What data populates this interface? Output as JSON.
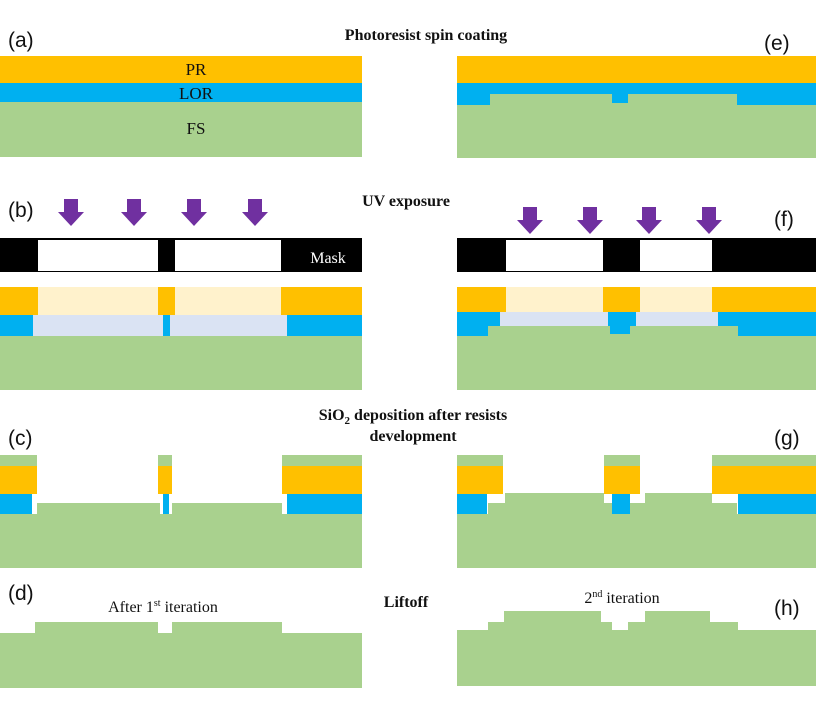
{
  "colors": {
    "photoresist": "#FFC000",
    "lor": "#00B0F0",
    "substrate": "#A9D18E",
    "exposed_pr": "#FFF2CC",
    "exposed_lor": "#DAE3F3",
    "mask": "#000000",
    "arrow": "#7030A0"
  },
  "panel_labels": {
    "a": "(a)",
    "b": "(b)",
    "c": "(c)",
    "d": "(d)",
    "e": "(e)",
    "f": "(f)",
    "g": "(g)",
    "h": "(h)"
  },
  "step_titles": {
    "spin": "Photoresist spin coating",
    "uv": "UV exposure",
    "sio2_line1": "SiO",
    "sio2_sub": "2",
    "sio2_rest": " deposition after resists",
    "sio2_line2": "development",
    "liftoff": "Liftoff"
  },
  "layer_labels": {
    "pr": "PR",
    "lor": "LOR",
    "fs": "FS",
    "mask": "Mask"
  },
  "iterations": {
    "first_prefix": "After 1",
    "first_sup": "st",
    "first_suffix": " iteration",
    "second_prefix": "2",
    "second_sup": "nd",
    "second_suffix": " iteration"
  }
}
